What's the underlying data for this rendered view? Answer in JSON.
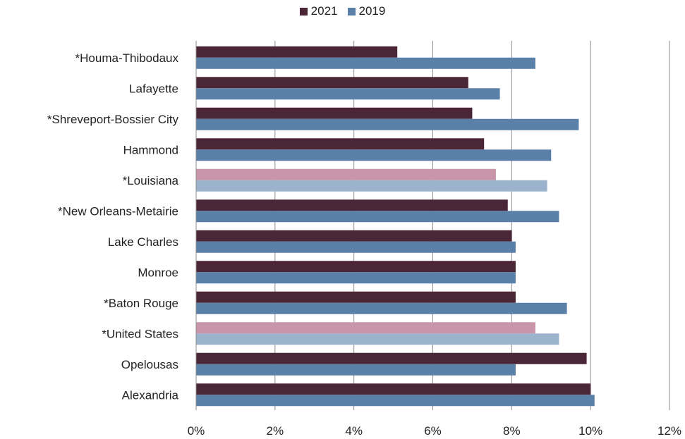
{
  "chart_data": {
    "type": "bar",
    "orientation": "horizontal",
    "categories": [
      "*Houma-Thibodaux",
      "Lafayette",
      "*Shreveport-Bossier City",
      "Hammond",
      "*Louisiana",
      "*New Orleans-Metairie",
      "Lake Charles",
      "Monroe",
      "*Baton Rouge",
      "*United States",
      "Opelousas",
      "Alexandria"
    ],
    "highlighted_categories": [
      "*Louisiana",
      "*United States"
    ],
    "series": [
      {
        "name": "2021",
        "color": "#4a2636",
        "highlight_color": "#c896a8",
        "values": [
          5.1,
          6.9,
          7.0,
          7.3,
          7.6,
          7.9,
          8.0,
          8.1,
          8.1,
          8.6,
          9.9,
          10.0
        ]
      },
      {
        "name": "2019",
        "color": "#5b80a8",
        "highlight_color": "#9bb3cc",
        "values": [
          8.6,
          7.7,
          9.7,
          9.0,
          8.9,
          9.2,
          8.1,
          8.1,
          9.4,
          9.2,
          8.1,
          10.1
        ]
      }
    ],
    "xlim": [
      0,
      12
    ],
    "xticks": [
      "0%",
      "2%",
      "4%",
      "6%",
      "8%",
      "10%",
      "12%"
    ],
    "grid": true,
    "legend": "top-center"
  }
}
